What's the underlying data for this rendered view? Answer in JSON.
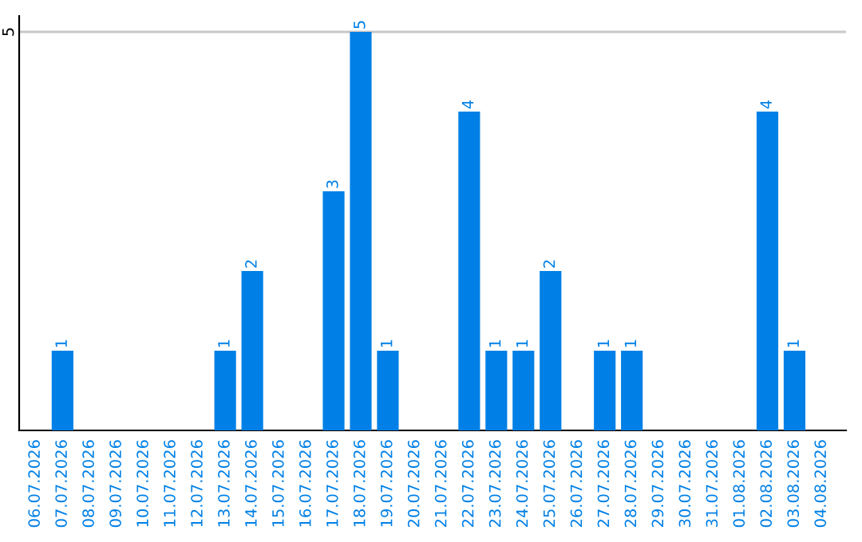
{
  "chart_data": {
    "type": "bar",
    "categories": [
      "06.07.2026",
      "07.07.2026",
      "08.07.2026",
      "09.07.2026",
      "10.07.2026",
      "11.07.2026",
      "12.07.2026",
      "13.07.2026",
      "14.07.2026",
      "15.07.2026",
      "16.07.2026",
      "17.07.2026",
      "18.07.2026",
      "19.07.2026",
      "20.07.2026",
      "21.07.2026",
      "22.07.2026",
      "23.07.2026",
      "24.07.2026",
      "25.07.2026",
      "26.07.2026",
      "27.07.2026",
      "28.07.2026",
      "29.07.2026",
      "30.07.2026",
      "31.07.2026",
      "01.08.2026",
      "02.08.2026",
      "03.08.2026",
      "04.08.2026"
    ],
    "values": [
      0,
      1,
      0,
      0,
      0,
      0,
      0,
      1,
      2,
      0,
      0,
      3,
      5,
      1,
      0,
      0,
      4,
      1,
      1,
      2,
      0,
      1,
      1,
      0,
      0,
      0,
      0,
      4,
      1,
      0
    ],
    "color": "#0080e6",
    "value_labels": [
      null,
      "1",
      null,
      null,
      null,
      null,
      null,
      "1",
      "2",
      null,
      null,
      "3",
      "5",
      "1",
      null,
      null,
      "4",
      "1",
      "1",
      "2",
      null,
      "1",
      "1",
      null,
      null,
      null,
      null,
      "4",
      "1",
      null
    ],
    "ylim": [
      0,
      5.2
    ],
    "yticks": [
      5
    ],
    "grid": "y"
  }
}
